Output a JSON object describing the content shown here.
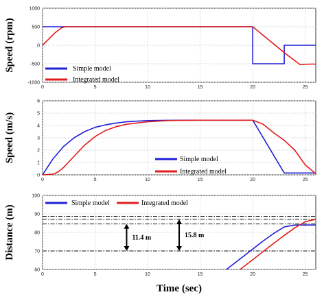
{
  "xlabel": "Time (sec)",
  "colors": {
    "simple": "#1f1fd6",
    "integrated": "#e01b1b"
  },
  "chart_data": [
    {
      "type": "line",
      "ylabel": "Speed (rpm)",
      "xlim": [
        0,
        26
      ],
      "ylim": [
        -1000,
        1000
      ],
      "xticks": [
        0,
        5,
        10,
        15,
        20,
        25
      ],
      "yticks": [
        -1000,
        -500,
        0,
        500,
        1000
      ],
      "grid": true,
      "series": [
        {
          "name": "Simple model",
          "x": [
            0,
            20,
            20,
            23,
            23,
            26
          ],
          "y": [
            500,
            500,
            -500,
            -500,
            0,
            0
          ]
        },
        {
          "name": "Integrated model",
          "x": [
            0,
            0.6,
            1.2,
            1.8,
            2.2,
            20,
            21.5,
            23,
            24.5,
            25.5,
            26
          ],
          "y": [
            0,
            170,
            340,
            470,
            500,
            500,
            150,
            -200,
            -520,
            -510,
            -510
          ]
        }
      ]
    },
    {
      "type": "line",
      "ylabel": "Speed (m/s)",
      "xlim": [
        0,
        26
      ],
      "ylim": [
        0,
        6
      ],
      "xticks": [
        0,
        5,
        10,
        15,
        20,
        25
      ],
      "yticks": [
        0,
        1,
        2,
        3,
        4,
        5,
        6
      ],
      "grid": true,
      "series": [
        {
          "name": "Simple model",
          "x": [
            0,
            1,
            2,
            3,
            4,
            5,
            6,
            7,
            8,
            10,
            12,
            15,
            20,
            23,
            26
          ],
          "y": [
            0,
            1.3,
            2.3,
            3.0,
            3.5,
            3.85,
            4.05,
            4.2,
            4.3,
            4.4,
            4.42,
            4.43,
            4.43,
            0.15,
            0.15
          ]
        },
        {
          "name": "Integrated model",
          "x": [
            0,
            1,
            1.5,
            2,
            3,
            4,
            5,
            6,
            7,
            8,
            10,
            12,
            15,
            20,
            21,
            22,
            23,
            24,
            25,
            26
          ],
          "y": [
            0,
            0.05,
            0.25,
            0.6,
            1.5,
            2.4,
            3.1,
            3.6,
            3.9,
            4.1,
            4.3,
            4.4,
            4.43,
            4.43,
            4.1,
            3.4,
            2.8,
            2.0,
            0.8,
            0.1
          ]
        }
      ]
    },
    {
      "type": "line",
      "ylabel": "Distance (m)",
      "xlim": [
        0,
        26
      ],
      "ylim": [
        60,
        100
      ],
      "xticks": [
        0,
        5,
        10,
        15,
        20,
        25
      ],
      "yticks": [
        60,
        70,
        80,
        90,
        100
      ],
      "grid": true,
      "series": [
        {
          "name": "Simple model",
          "x": [
            17.5,
            19,
            20,
            21,
            22,
            23,
            24,
            25,
            26
          ],
          "y": [
            60,
            66.6,
            71,
            75.4,
            79.5,
            83.0,
            84.0,
            84.0,
            84.0
          ]
        },
        {
          "name": "Integrated model",
          "x": [
            18.8,
            20,
            21,
            22,
            23,
            24,
            25,
            26
          ],
          "y": [
            60,
            65.3,
            69.7,
            74.1,
            78.4,
            82.5,
            85.8,
            87.1
          ]
        }
      ],
      "reference_lines": [
        70,
        84.6,
        87.1,
        88.7
      ],
      "annotations": [
        {
          "text": "11.4 m",
          "x": 8,
          "from": 70,
          "to": 84.6
        },
        {
          "text": "15.8 m",
          "x": 13,
          "from": 70,
          "to": 87.1
        }
      ]
    }
  ]
}
